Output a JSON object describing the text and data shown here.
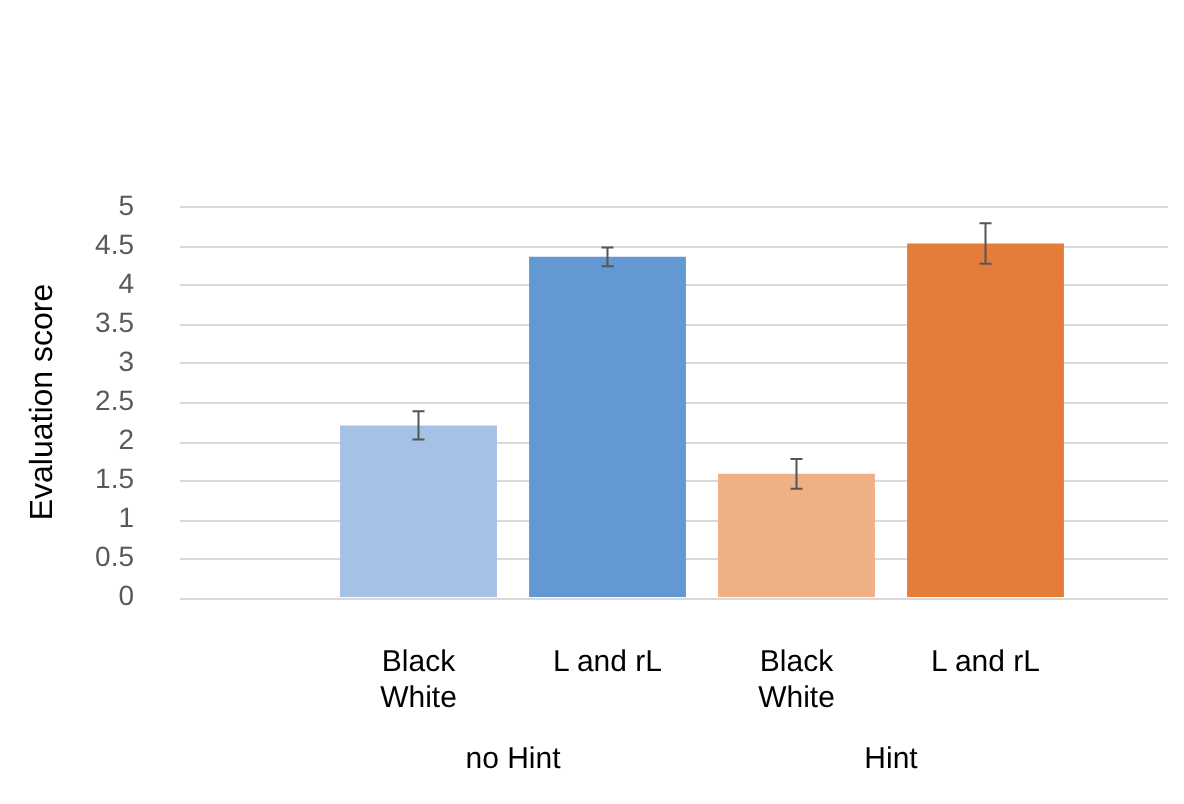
{
  "chart_data": {
    "type": "bar",
    "ylabel": "Evaluation score",
    "categories": [
      "Black\nWhite",
      "L and rL",
      "Black\nWhite",
      "L and rL"
    ],
    "values": [
      2.2,
      4.36,
      1.58,
      4.53
    ],
    "errors": [
      0.18,
      0.12,
      0.19,
      0.26
    ],
    "colors": [
      "#a3c2e6",
      "#6498d3",
      "#f0b086",
      "#e67c3a"
    ],
    "annotations": [
      "no Hint",
      "Hint"
    ],
    "ylim": [
      0,
      5
    ],
    "yticks": [
      0,
      0.5,
      1,
      1.5,
      2,
      2.5,
      3,
      3.5,
      4,
      4.5,
      5
    ],
    "grid": "y",
    "legend": false
  }
}
